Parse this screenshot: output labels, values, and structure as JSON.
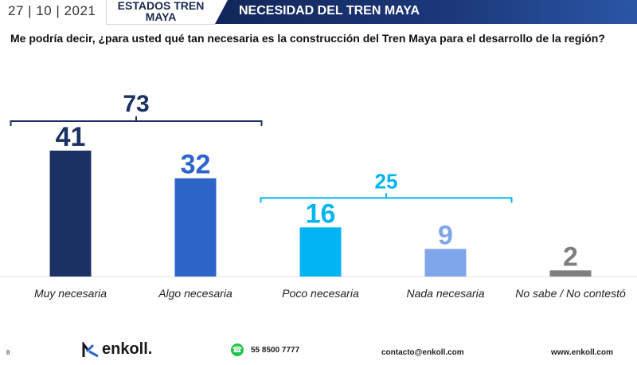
{
  "header": {
    "date": "27 | 10 | 2021",
    "region": "ESTADOS TREN MAYA",
    "title": "NECESIDAD DEL TREN MAYA"
  },
  "question": "Me podría decir, ¿para usted qué tan necesaria es la construcción del Tren Maya para el desarrollo de la región?",
  "chart_data": {
    "type": "bar",
    "categories": [
      "Muy necesaria",
      "Algo necesaria",
      "Poco necesaria",
      "Nada necesaria",
      "No sabe / No contestó"
    ],
    "values": [
      41,
      32,
      16,
      9,
      2
    ],
    "colors": [
      "#1b3164",
      "#2d64c8",
      "#03b4f2",
      "#80a6ea",
      "#7f7f7f"
    ],
    "groups": [
      {
        "label": "73",
        "from": 0,
        "to": 1,
        "color": "#1b3164"
      },
      {
        "label": "25",
        "from": 2,
        "to": 3,
        "color": "#03b4f2"
      }
    ],
    "ylim": [
      0,
      45
    ],
    "grid": false
  },
  "footer": {
    "page": "8",
    "brand": "enkoll.",
    "phone": "55 8500 7777",
    "email": "contacto@enkoll.com",
    "web": "www.enkoll.com"
  },
  "icons": {
    "logo": "enkoll-logo-icon",
    "whatsapp": "whatsapp-icon"
  }
}
